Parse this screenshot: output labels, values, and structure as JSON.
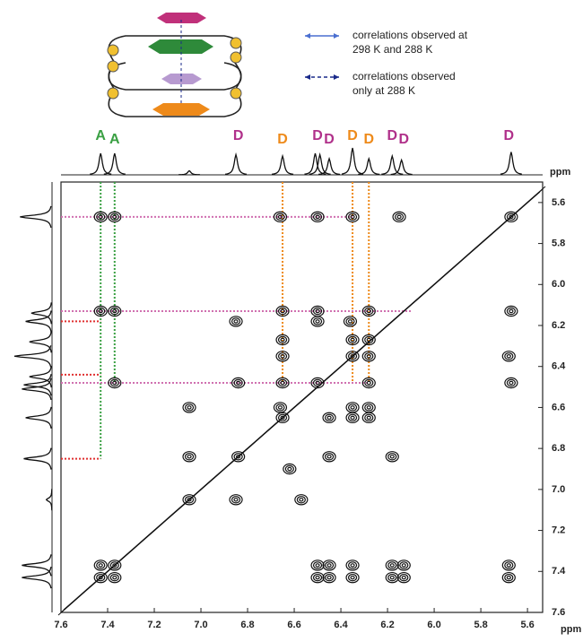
{
  "chart_data": {
    "type": "nmr2d",
    "x_label": "ppm",
    "y_label": "ppm",
    "xlim": [
      7.6,
      5.535
    ],
    "ylim": [
      5.5,
      7.6
    ],
    "xticks": [
      7.6,
      7.4,
      7.2,
      {
        "value": 7,
        "label": "7.0"
      },
      6.8,
      6.6,
      6.4,
      6.2,
      {
        "value": 6,
        "label": "6.0"
      },
      5.8,
      5.6
    ],
    "yticks": [
      5.6,
      5.8,
      {
        "value": 6,
        "label": "6.0"
      },
      6.2,
      6.4,
      6.6,
      6.8,
      {
        "value": 7,
        "label": "7.0"
      },
      7.2,
      7.4,
      7.6
    ],
    "legend": [
      {
        "lines": [
          "correlations observed at",
          "298 K and 288 K"
        ],
        "style": "solid",
        "color": "#4a6fd0"
      },
      {
        "lines": [
          "correlations observed",
          "only at 288 K"
        ],
        "style": "dashed",
        "color": "#1a2a8a"
      }
    ],
    "peak_labels": [
      {
        "text": "A",
        "x": 7.43,
        "color": "#3aa043"
      },
      {
        "text": "A",
        "x": 7.37,
        "color": "#3aa043"
      },
      {
        "text": "D",
        "x": 6.84,
        "color": "#b0308a"
      },
      {
        "text": "D",
        "x": 6.65,
        "color": "#ee8a1a"
      },
      {
        "text": "D",
        "x": 6.5,
        "color": "#b0308a"
      },
      {
        "text": "D",
        "x": 6.45,
        "color": "#b0308a"
      },
      {
        "text": "D",
        "x": 6.35,
        "color": "#ee8a1a"
      },
      {
        "text": "D",
        "x": 6.28,
        "color": "#ee8a1a"
      },
      {
        "text": "D",
        "x": 6.18,
        "color": "#b0308a"
      },
      {
        "text": "D",
        "x": 6.13,
        "color": "#b0308a"
      },
      {
        "text": "D",
        "x": 5.68,
        "color": "#b0308a"
      }
    ],
    "projection": {
      "x": [
        7.43,
        7.37,
        7.05,
        6.85,
        6.65,
        6.51,
        6.49,
        6.45,
        6.35,
        6.28,
        6.18,
        6.14,
        5.67
      ],
      "heights": [
        0.8,
        0.8,
        0.15,
        0.75,
        0.7,
        0.8,
        0.75,
        0.6,
        1.0,
        0.6,
        0.7,
        0.55,
        0.85
      ]
    },
    "guides": [
      {
        "x": 7.43,
        "to": 6.85,
        "color": "#3aa043"
      },
      {
        "x": 7.37,
        "to": 6.48,
        "color": "#3aa043"
      },
      {
        "x": 6.65,
        "to": 6.48,
        "color": "#ee8a1a"
      },
      {
        "x": 6.35,
        "to": 6.48,
        "color": "#ee8a1a"
      },
      {
        "x": 6.28,
        "to": 6.48,
        "color": "#ee8a1a"
      },
      {
        "y": 5.67,
        "to": 6.35,
        "color": "#d070b0"
      },
      {
        "y": 6.13,
        "to": 6.1,
        "color": "#d070b0"
      },
      {
        "y": 6.48,
        "to": 6.28,
        "color": "#d070b0"
      },
      {
        "y": 6.18,
        "to": 7.43,
        "color": "#e03030"
      },
      {
        "y": 6.44,
        "to": 7.43,
        "color": "#e03030"
      },
      {
        "y": 6.85,
        "to": 7.43,
        "color": "#e03030"
      }
    ],
    "cross_peaks": {
      "x": [
        7.43,
        7.37,
        6.66,
        6.5,
        6.35,
        6.15,
        5.67,
        7.43,
        7.37,
        6.65,
        6.5,
        6.28,
        5.67,
        6.85,
        6.5,
        6.36,
        6.65,
        6.35,
        6.28,
        6.65,
        6.35,
        6.28,
        5.68,
        7.37,
        6.84,
        6.65,
        6.5,
        6.28,
        5.67,
        7.05,
        6.66,
        6.35,
        6.28,
        6.65,
        6.35,
        6.28,
        6.45,
        7.05,
        6.84,
        6.45,
        6.18,
        6.62,
        7.05,
        6.85,
        6.57,
        7.43,
        7.37,
        6.5,
        6.45,
        6.35,
        6.18,
        6.13,
        5.68,
        7.43,
        7.37,
        6.5,
        6.45,
        6.35,
        6.18,
        6.13,
        5.68
      ],
      "y": [
        5.67,
        5.67,
        5.67,
        5.67,
        5.67,
        5.67,
        5.67,
        6.13,
        6.13,
        6.13,
        6.13,
        6.13,
        6.13,
        6.18,
        6.18,
        6.18,
        6.27,
        6.27,
        6.27,
        6.35,
        6.35,
        6.35,
        6.35,
        6.48,
        6.48,
        6.48,
        6.48,
        6.48,
        6.48,
        6.6,
        6.6,
        6.6,
        6.6,
        6.65,
        6.65,
        6.65,
        6.65,
        6.84,
        6.84,
        6.84,
        6.84,
        6.9,
        7.05,
        7.05,
        7.05,
        7.37,
        7.37,
        7.37,
        7.37,
        7.37,
        7.37,
        7.37,
        7.37,
        7.43,
        7.43,
        7.43,
        7.43,
        7.43,
        7.43,
        7.43,
        7.43
      ]
    }
  }
}
